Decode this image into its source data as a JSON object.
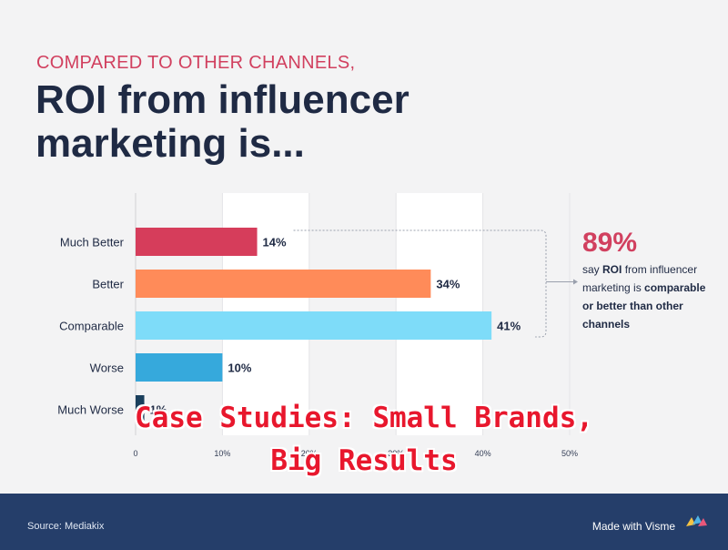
{
  "header": {
    "kicker": "COMPARED TO OTHER CHANNELS,",
    "title": "ROI from influencer marketing is..."
  },
  "callout": {
    "percent": "89%",
    "line1": "say ",
    "bold1": "ROI",
    "line2": " from influencer marketing is ",
    "bold2": "comparable or better than other channels"
  },
  "overlay_text": "Case Studies: Small Brands, Big Results",
  "footer": {
    "source": "Source: Mediakix",
    "made_with": "Made with Visme"
  },
  "chart_data": {
    "type": "bar",
    "orientation": "horizontal",
    "categories": [
      "Much Better",
      "Better",
      "Comparable",
      "Worse",
      "Much Worse"
    ],
    "values": [
      14,
      34,
      41,
      10,
      1
    ],
    "value_labels": [
      "14%",
      "34%",
      "41%",
      "10%",
      "1%"
    ],
    "colors": [
      "#d63d5b",
      "#ff8b59",
      "#7edcf9",
      "#36a9dc",
      "#1a3f5c"
    ],
    "xlim": [
      0,
      50
    ],
    "xticks": [
      0,
      10,
      20,
      30,
      40,
      50
    ],
    "xtick_labels": [
      "0",
      "10%",
      "20%",
      "30%",
      "40%",
      "50%"
    ],
    "grid": true
  }
}
